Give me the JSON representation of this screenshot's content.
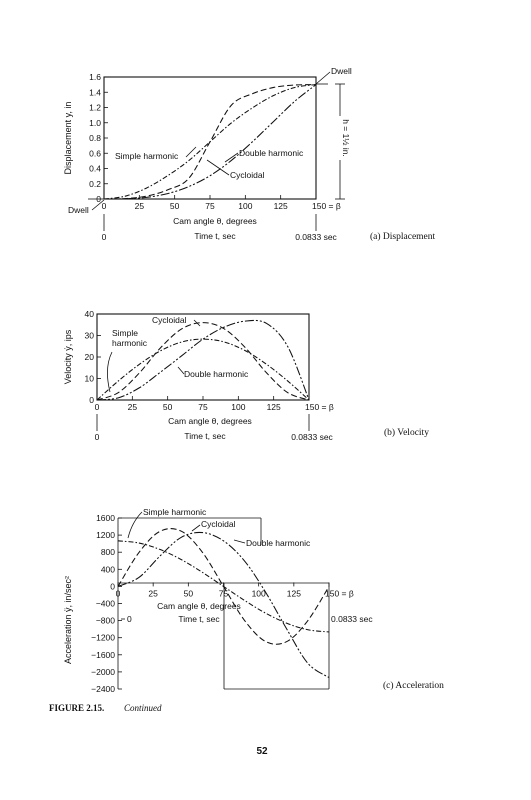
{
  "figure_caption": {
    "label": "FIGURE 2.15.",
    "suffix": "Continued"
  },
  "page_number": "52",
  "chart_data": [
    {
      "type": "line",
      "subcaption": "(a)  Displacement",
      "ylabel": "Displacement y, in",
      "xlabel": "Cam angle θ, degrees",
      "x2label": "Time t, sec",
      "xticks": [
        "0",
        "25",
        "50",
        "75",
        "100",
        "125",
        "150 = β"
      ],
      "yticks": [
        "0",
        "0.2",
        "0.4",
        "0.6",
        "0.8",
        "1.0",
        "1.2",
        "1.4",
        "1.6"
      ],
      "time_ticks": [
        "0",
        "0.0833 sec"
      ],
      "xlim": [
        0,
        150
      ],
      "ylim": [
        0,
        1.6
      ],
      "annotations": [
        "Dwell",
        "Dwell",
        "h = 1½ in.",
        "Simple harmonic",
        "Double harmonic",
        "Cycloidal"
      ],
      "series": [
        {
          "name": "Simple harmonic",
          "x": [
            0,
            15,
            30,
            45,
            60,
            75,
            90,
            105,
            120,
            135,
            150
          ],
          "values": [
            0,
            0.037,
            0.143,
            0.305,
            0.504,
            0.75,
            0.996,
            1.195,
            1.357,
            1.463,
            1.5
          ]
        },
        {
          "name": "Cycloidal",
          "x": [
            0,
            15,
            30,
            45,
            60,
            75,
            90,
            105,
            120,
            135,
            150
          ],
          "values": [
            0,
            0.005,
            0.037,
            0.12,
            0.271,
            0.75,
            1.228,
            1.38,
            1.463,
            1.495,
            1.5
          ]
        },
        {
          "name": "Double harmonic",
          "x": [
            0,
            15,
            30,
            45,
            60,
            75,
            90,
            105,
            120,
            135,
            150
          ],
          "values": [
            0,
            0.003,
            0.021,
            0.071,
            0.163,
            0.305,
            0.504,
            0.75,
            1.017,
            1.282,
            1.5
          ]
        }
      ]
    },
    {
      "type": "line",
      "subcaption": "(b)  Velocity",
      "ylabel": "Velocity ẏ, ips",
      "xlabel": "Cam angle θ, degrees",
      "x2label": "Time t, sec",
      "xticks": [
        "0",
        "25",
        "50",
        "75",
        "100",
        "125",
        "150 = β"
      ],
      "yticks": [
        "0",
        "10",
        "20",
        "30",
        "40"
      ],
      "time_ticks": [
        "0",
        "0.0833 sec"
      ],
      "xlim": [
        0,
        150
      ],
      "ylim": [
        0,
        40
      ],
      "annotations": [
        "Cycloidal",
        "Simple harmonic",
        "Double harmonic"
      ],
      "series": [
        {
          "name": "Simple harmonic",
          "x": [
            0,
            15,
            30,
            45,
            60,
            75,
            90,
            105,
            120,
            135,
            150
          ],
          "values": [
            0,
            8.8,
            16.6,
            22.9,
            27.0,
            28.3,
            27.0,
            22.9,
            16.6,
            8.8,
            0
          ]
        },
        {
          "name": "Cycloidal",
          "x": [
            0,
            15,
            30,
            45,
            60,
            75,
            90,
            105,
            120,
            135,
            150
          ],
          "values": [
            0,
            3.4,
            12.6,
            24.3,
            33.1,
            36.0,
            33.1,
            24.3,
            12.6,
            3.4,
            0
          ]
        },
        {
          "name": "Double harmonic",
          "x": [
            0,
            15,
            30,
            45,
            60,
            75,
            90,
            105,
            120,
            135,
            150
          ],
          "values": [
            0,
            1.0,
            5.7,
            13.0,
            20.6,
            28.3,
            33.9,
            36.7,
            35.6,
            24.8,
            0
          ]
        }
      ]
    },
    {
      "type": "line",
      "subcaption": "(c)  Acceleration",
      "ylabel": "Acceleration ÿ, in/sec²",
      "xlabel": "Cam angle θ, degrees",
      "x2label": "Time t, sec",
      "xticks": [
        "0",
        "25",
        "50",
        "75",
        "100",
        "125",
        "150 = β"
      ],
      "yticks": [
        "1600",
        "1200",
        "800",
        "400",
        "0",
        "−400",
        "−800",
        "−1200",
        "−1600",
        "−2000",
        "−2400"
      ],
      "time_ticks": [
        "0",
        "0.0833 sec"
      ],
      "xlim": [
        0,
        150
      ],
      "ylim": [
        -2400,
        1600
      ],
      "annotations": [
        "Simple harmonic",
        "Cycloidal",
        "Double harmonic"
      ],
      "series": [
        {
          "name": "Simple harmonic",
          "x": [
            0,
            15,
            30,
            45,
            60,
            75,
            90,
            105,
            120,
            135,
            150
          ],
          "values": [
            1066,
            1014,
            862,
            627,
            329,
            0,
            -329,
            -627,
            -862,
            -1014,
            -1066
          ]
        },
        {
          "name": "Cycloidal",
          "x": [
            0,
            15,
            30,
            45,
            60,
            75,
            90,
            105,
            120,
            135,
            150
          ],
          "values": [
            0,
            798,
            1291,
            1291,
            798,
            0,
            -798,
            -1291,
            -1291,
            -798,
            0
          ]
        },
        {
          "name": "Double harmonic",
          "x": [
            0,
            15,
            30,
            45,
            60,
            75,
            90,
            105,
            120,
            135,
            150
          ],
          "values": [
            0,
            212,
            716,
            1149,
            1259,
            1066,
            593,
            -140,
            -1000,
            -1800,
            -2132
          ]
        }
      ]
    }
  ]
}
